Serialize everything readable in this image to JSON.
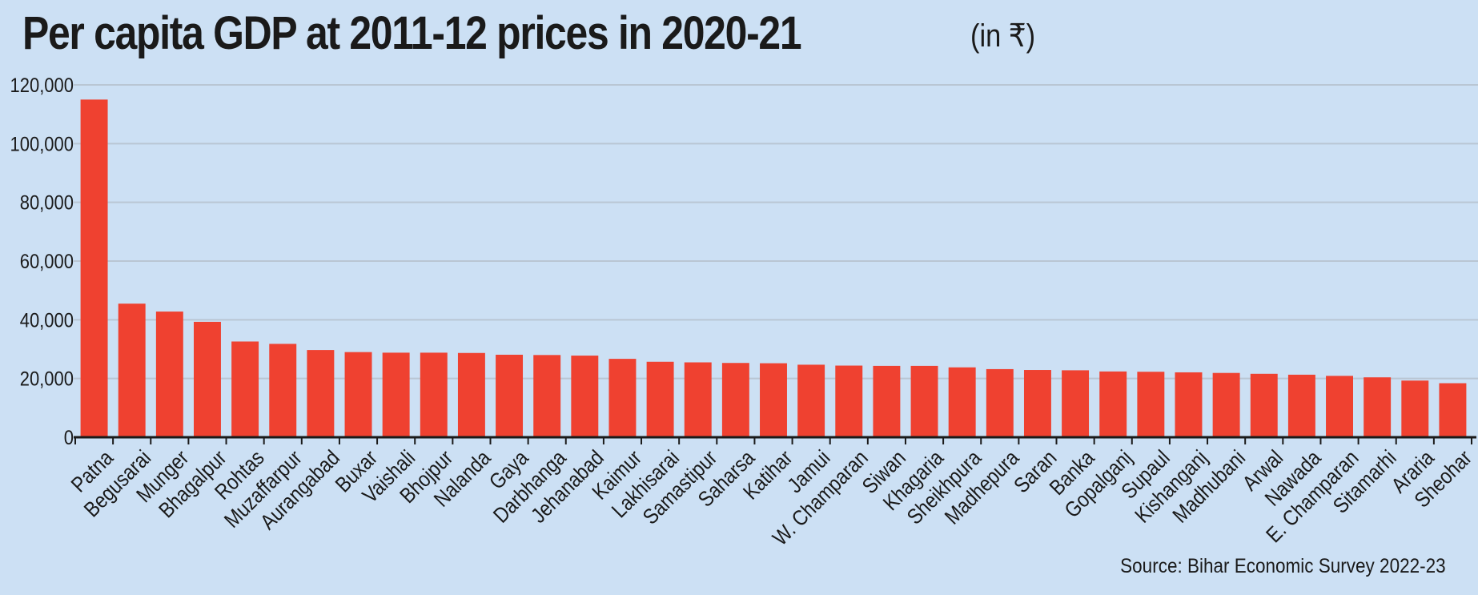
{
  "title": "Per capita GDP at 2011-12 prices in 2020-21",
  "unit": "(in ₹)",
  "source": "Source: Bihar Economic Survey 2022-23",
  "colors": {
    "bar": "#ef4130",
    "background": "#cce0f4",
    "grid": "#b9c6d3",
    "axis": "#1a1a1a"
  },
  "chart_data": {
    "type": "bar",
    "categories": [
      "Patna",
      "Begusarai",
      "Munger",
      "Bhagalpur",
      "Rohtas",
      "Muzaffarpur",
      "Aurangabad",
      "Buxar",
      "Vaishali",
      "Bhojpur",
      "Nalanda",
      "Gaya",
      "Darbhanga",
      "Jehanabad",
      "Kaimur",
      "Lakhisarai",
      "Samastipur",
      "Saharsa",
      "Katihar",
      "Jamui",
      "W. Champaran",
      "Siwan",
      "Khagaria",
      "Sheikhpura",
      "Madhepura",
      "Saran",
      "Banka",
      "Gopalganj",
      "Supaul",
      "Kishanganj",
      "Madhubani",
      "Arwal",
      "Nawada",
      "E. Champaran",
      "Sitamarhi",
      "Araria",
      "Sheohar"
    ],
    "values": [
      115000,
      45500,
      42800,
      39300,
      32600,
      31800,
      29700,
      29000,
      28800,
      28800,
      28700,
      28100,
      28000,
      27800,
      26700,
      25700,
      25500,
      25300,
      25200,
      24700,
      24400,
      24300,
      24300,
      23800,
      23200,
      22900,
      22800,
      22400,
      22300,
      22100,
      21900,
      21600,
      21300,
      20900,
      20400,
      19300,
      18400
    ],
    "ylim": [
      0,
      120000
    ],
    "yticks": [
      "0",
      "20,000",
      "40,000",
      "60,000",
      "80,000",
      "100,000",
      "120,000"
    ],
    "grid": true
  }
}
